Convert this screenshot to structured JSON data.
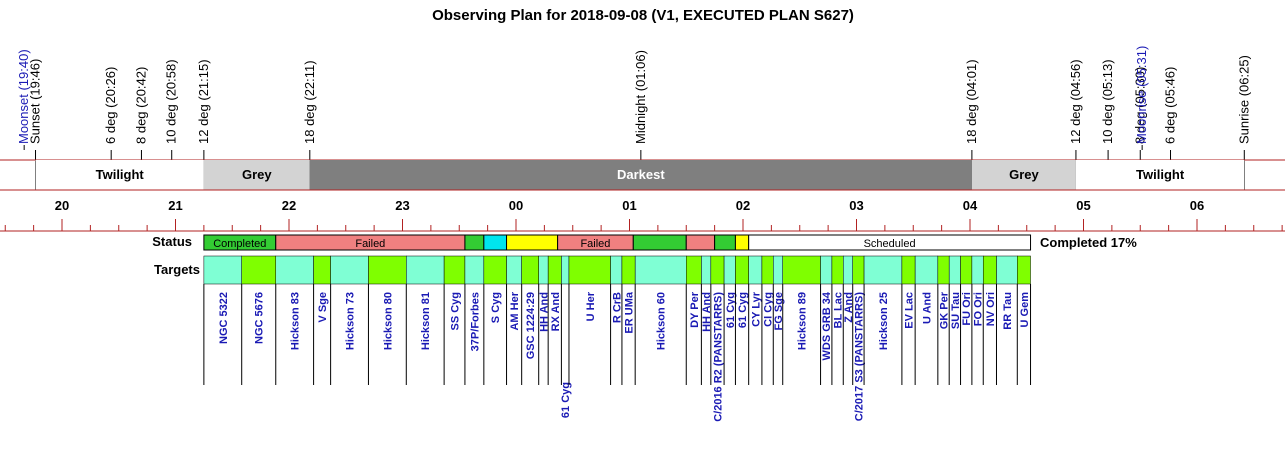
{
  "chart_data": {
    "type": "timeline",
    "title": "Observing Plan for 2018-09-08 (V1, EXECUTED PLAN S627)",
    "events": [
      {
        "label": "Moonset (19:40)",
        "time": "19:40",
        "color": "#1a1ab4"
      },
      {
        "label": "Sunset (19:46)",
        "time": "19:46",
        "color": "#000000"
      },
      {
        "label": "6 deg (20:26)",
        "time": "20:26",
        "color": "#000000"
      },
      {
        "label": "8 deg (20:42)",
        "time": "20:42",
        "color": "#000000"
      },
      {
        "label": "10 deg (20:58)",
        "time": "20:58",
        "color": "#000000"
      },
      {
        "label": "12 deg (21:15)",
        "time": "21:15",
        "color": "#000000"
      },
      {
        "label": "18 deg (22:11)",
        "time": "22:11",
        "color": "#000000"
      },
      {
        "label": "Midnight (01:06)",
        "time": "01:06",
        "color": "#000000"
      },
      {
        "label": "18 deg (04:01)",
        "time": "04:01",
        "color": "#000000"
      },
      {
        "label": "12 deg (04:56)",
        "time": "04:56",
        "color": "#000000"
      },
      {
        "label": "10 deg (05:13)",
        "time": "05:13",
        "color": "#000000"
      },
      {
        "label": "8 deg (05:30)",
        "time": "05:30",
        "color": "#000000"
      },
      {
        "label": "Moonrise (05:31)",
        "time": "05:31",
        "color": "#1a1ab4"
      },
      {
        "label": "6 deg (05:46)",
        "time": "05:46",
        "color": "#000000"
      },
      {
        "label": "Sunrise (06:25)",
        "time": "06:25",
        "color": "#000000"
      }
    ],
    "phases": [
      {
        "label": "Twilight",
        "start": "19:46",
        "end": "21:15",
        "color": "#ffffff",
        "text_color": "#000000"
      },
      {
        "label": "Grey",
        "start": "21:15",
        "end": "22:11",
        "color": "#d3d3d3",
        "text_color": "#000000"
      },
      {
        "label": "Darkest",
        "start": "22:11",
        "end": "04:01",
        "color": "#7f7f7f",
        "text_color": "#ffffff"
      },
      {
        "label": "Grey",
        "start": "04:01",
        "end": "04:56",
        "color": "#d3d3d3",
        "text_color": "#000000"
      },
      {
        "label": "Twilight",
        "start": "04:56",
        "end": "06:25",
        "color": "#ffffff",
        "text_color": "#000000"
      }
    ],
    "hour_ticks": [
      "20",
      "21",
      "22",
      "23",
      "00",
      "01",
      "02",
      "03",
      "04",
      "05",
      "06"
    ],
    "status_label": "Status",
    "targets_label": "Targets",
    "completed_text": "Completed 17%",
    "status_segments": [
      {
        "label": "Completed",
        "start": "21:15",
        "end": "21:53",
        "color": "#33cc33"
      },
      {
        "label": "Failed",
        "start": "21:53",
        "end": "23:33",
        "color": "#f08080"
      },
      {
        "label": "",
        "start": "23:33",
        "end": "23:43",
        "color": "#33cc33"
      },
      {
        "label": "",
        "start": "23:43",
        "end": "23:55",
        "color": "#00e5ee"
      },
      {
        "label": "",
        "start": "23:55",
        "end": "00:22",
        "color": "#ffff00"
      },
      {
        "label": "Failed",
        "start": "00:22",
        "end": "01:02",
        "color": "#f08080"
      },
      {
        "label": "",
        "start": "01:02",
        "end": "01:30",
        "color": "#33cc33"
      },
      {
        "label": "",
        "start": "01:30",
        "end": "01:45",
        "color": "#f08080"
      },
      {
        "label": "",
        "start": "01:45",
        "end": "01:56",
        "color": "#33cc33"
      },
      {
        "label": "",
        "start": "01:56",
        "end": "02:03",
        "color": "#ffff00"
      },
      {
        "label": "Scheduled",
        "start": "02:03",
        "end": "04:32",
        "color": "#ffffff"
      }
    ],
    "targets": [
      {
        "name": "NGC 5322",
        "start": "21:15",
        "end": "21:35",
        "color": "#7fffd4"
      },
      {
        "name": "NGC 5676",
        "start": "21:35",
        "end": "21:53",
        "color": "#7fff00"
      },
      {
        "name": "Hickson 83",
        "start": "21:53",
        "end": "22:13",
        "color": "#7fffd4"
      },
      {
        "name": "V Sge",
        "start": "22:13",
        "end": "22:22",
        "color": "#7fff00"
      },
      {
        "name": "Hickson 73",
        "start": "22:22",
        "end": "22:42",
        "color": "#7fffd4"
      },
      {
        "name": "Hickson 80",
        "start": "22:42",
        "end": "23:02",
        "color": "#7fff00"
      },
      {
        "name": "Hickson 81",
        "start": "23:02",
        "end": "23:22",
        "color": "#7fffd4"
      },
      {
        "name": "SS Cyg",
        "start": "23:22",
        "end": "23:33",
        "color": "#7fff00"
      },
      {
        "name": "37P/Forbes",
        "start": "23:33",
        "end": "23:43",
        "color": "#7fffd4"
      },
      {
        "name": "S Cyg",
        "start": "23:43",
        "end": "23:55",
        "color": "#7fff00"
      },
      {
        "name": "AM Her",
        "start": "23:55",
        "end": "00:03",
        "color": "#7fffd4"
      },
      {
        "name": "GSC 1224:29",
        "start": "00:03",
        "end": "00:12",
        "color": "#7fff00"
      },
      {
        "name": "HH And",
        "start": "00:12",
        "end": "00:17",
        "color": "#7fffd4"
      },
      {
        "name": "RX And",
        "start": "00:17",
        "end": "00:24",
        "color": "#7fff00"
      },
      {
        "name": "61 Cyg",
        "start": "00:24",
        "end": "00:28",
        "color": "#7fffd4"
      },
      {
        "name": "U Her",
        "start": "00:28",
        "end": "00:50",
        "color": "#7fff00"
      },
      {
        "name": "R CrB",
        "start": "00:50",
        "end": "00:56",
        "color": "#7fffd4"
      },
      {
        "name": "ER UMa",
        "start": "00:56",
        "end": "01:03",
        "color": "#7fff00"
      },
      {
        "name": "Hickson 60",
        "start": "01:03",
        "end": "01:30",
        "color": "#7fffd4"
      },
      {
        "name": "DY Per",
        "start": "01:30",
        "end": "01:38",
        "color": "#7fff00"
      },
      {
        "name": "HH And",
        "start": "01:38",
        "end": "01:43",
        "color": "#7fffd4"
      },
      {
        "name": "C/2016 R2 (PANSTARRS)",
        "start": "01:43",
        "end": "01:50",
        "color": "#7fff00"
      },
      {
        "name": "61 Cyg",
        "start": "01:50",
        "end": "01:56",
        "color": "#7fffd4"
      },
      {
        "name": "61 Cyg",
        "start": "01:56",
        "end": "02:03",
        "color": "#7fff00"
      },
      {
        "name": "CY Lyr",
        "start": "02:03",
        "end": "02:10",
        "color": "#7fffd4"
      },
      {
        "name": "CI Cyg",
        "start": "02:10",
        "end": "02:16",
        "color": "#7fff00"
      },
      {
        "name": "FG Sge",
        "start": "02:16",
        "end": "02:21",
        "color": "#7fffd4"
      },
      {
        "name": "Hickson 89",
        "start": "02:21",
        "end": "02:41",
        "color": "#7fff00"
      },
      {
        "name": "WDS GRB 34",
        "start": "02:41",
        "end": "02:47",
        "color": "#7fffd4"
      },
      {
        "name": "BL Lac",
        "start": "02:47",
        "end": "02:53",
        "color": "#7fff00"
      },
      {
        "name": "Z And",
        "start": "02:53",
        "end": "02:58",
        "color": "#7fffd4"
      },
      {
        "name": "C/2017 S3 (PANSTARRS)",
        "start": "02:58",
        "end": "03:04",
        "color": "#7fff00"
      },
      {
        "name": "Hickson 25",
        "start": "03:04",
        "end": "03:24",
        "color": "#7fffd4"
      },
      {
        "name": "EV Lac",
        "start": "03:24",
        "end": "03:31",
        "color": "#7fff00"
      },
      {
        "name": "U And",
        "start": "03:31",
        "end": "03:43",
        "color": "#7fffd4"
      },
      {
        "name": "GK Per",
        "start": "03:43",
        "end": "03:49",
        "color": "#7fff00"
      },
      {
        "name": "SU Tau",
        "start": "03:49",
        "end": "03:55",
        "color": "#7fffd4"
      },
      {
        "name": "FU Ori",
        "start": "03:55",
        "end": "04:01",
        "color": "#7fff00"
      },
      {
        "name": "FO Ori",
        "start": "04:01",
        "end": "04:07",
        "color": "#7fffd4"
      },
      {
        "name": "NV Ori",
        "start": "04:07",
        "end": "04:14",
        "color": "#7fff00"
      },
      {
        "name": "RR Tau",
        "start": "04:14",
        "end": "04:25",
        "color": "#7fffd4"
      },
      {
        "name": "U Gem",
        "start": "04:25",
        "end": "04:32",
        "color": "#7fff00"
      }
    ],
    "line_color": "#b22222",
    "moon_color": "#1a1ab4",
    "target_text_color": "#1a1ab4"
  }
}
